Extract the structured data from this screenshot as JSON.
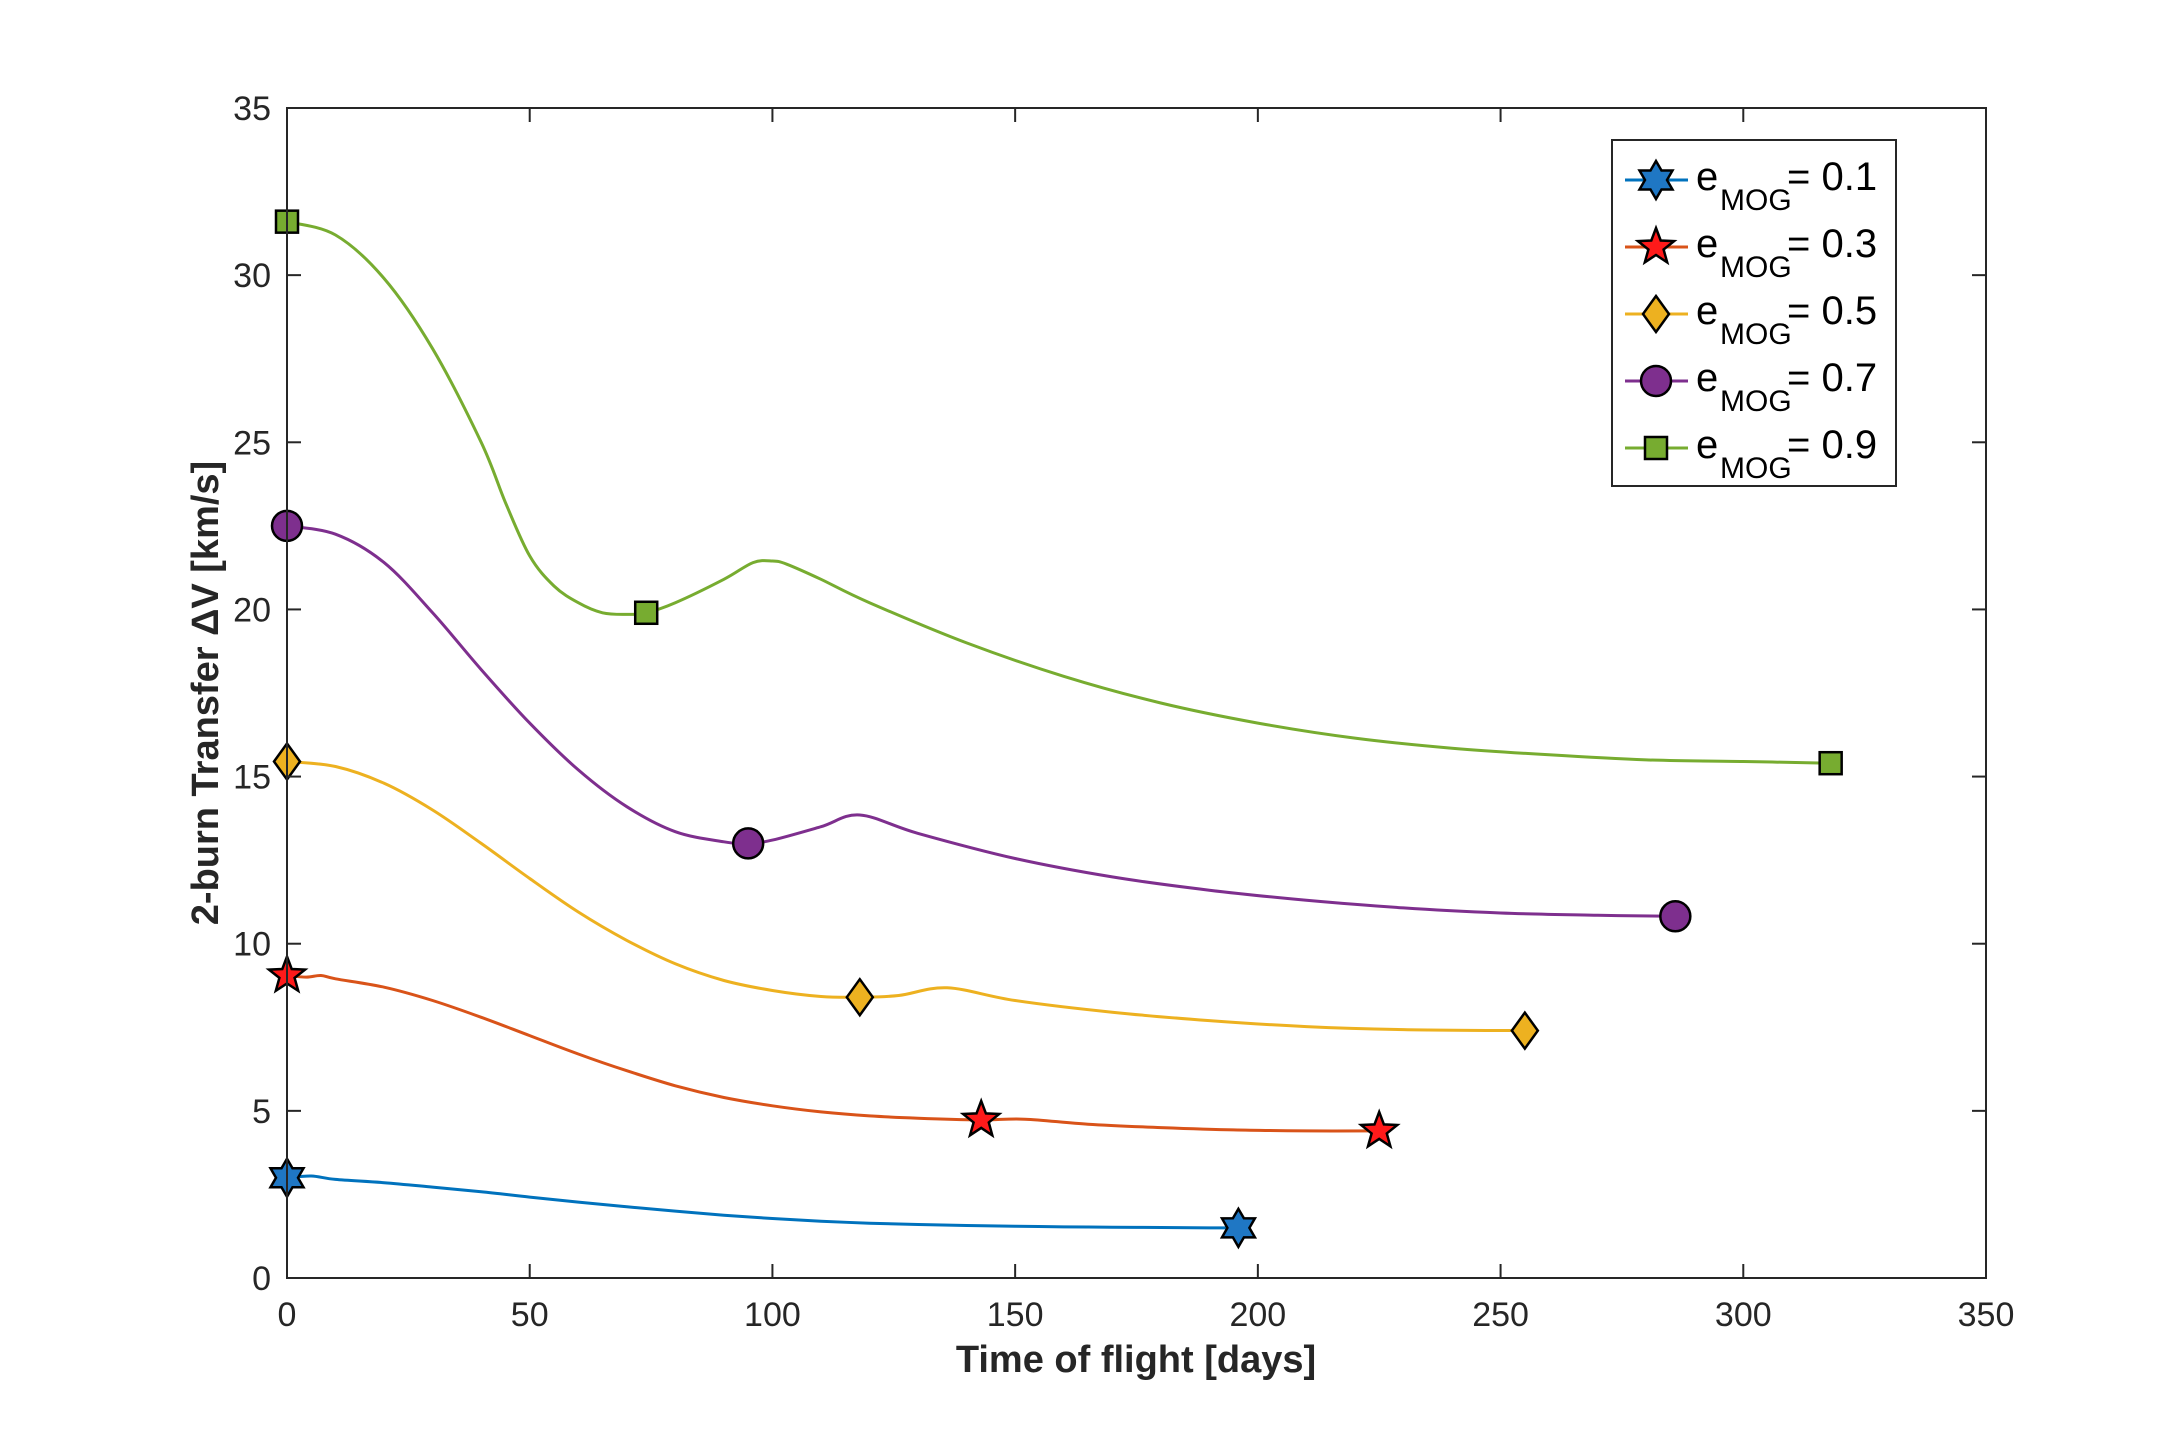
{
  "chart_data": {
    "type": "line",
    "title": "",
    "xlabel": "Time of flight [days]",
    "ylabel": "2-burn Transfer ΔV [km/s]",
    "xlim": [
      0,
      350
    ],
    "ylim": [
      0,
      35
    ],
    "xticks": [
      0,
      50,
      100,
      150,
      200,
      250,
      300,
      350
    ],
    "yticks": [
      0,
      5,
      10,
      15,
      20,
      25,
      30,
      35
    ],
    "xtick_labels": [
      "0",
      "50",
      "100",
      "150",
      "200",
      "250",
      "300",
      "350"
    ],
    "ytick_labels": [
      "0",
      "5",
      "10",
      "15",
      "20",
      "25",
      "30",
      "35"
    ],
    "grid": false,
    "legend_position": "top-right",
    "series": [
      {
        "name": "e_MOG = 0.1",
        "legend_base": "e",
        "legend_sub": "MOG",
        "legend_value": " = 0.1",
        "color": "#0072BD",
        "marker": "hexagram",
        "marker_color": "#1f77c4",
        "x": [
          0,
          5,
          10,
          20,
          30,
          40,
          50,
          60,
          70,
          80,
          90,
          100,
          110,
          120,
          130,
          140,
          150,
          160,
          170,
          180,
          190,
          196
        ],
        "y": [
          3.0,
          3.05,
          2.95,
          2.85,
          2.72,
          2.58,
          2.42,
          2.27,
          2.13,
          2.0,
          1.88,
          1.78,
          1.7,
          1.64,
          1.6,
          1.57,
          1.55,
          1.53,
          1.52,
          1.51,
          1.5,
          1.5
        ],
        "marker_x": [
          0,
          196
        ],
        "marker_y": [
          3.0,
          1.5
        ]
      },
      {
        "name": "e_MOG = 0.3",
        "legend_base": "e",
        "legend_sub": "MOG",
        "legend_value": " = 0.3",
        "color": "#D95319",
        "marker": "pentagram",
        "marker_color": "#ff1a1a",
        "x": [
          0,
          4,
          7,
          10,
          20,
          30,
          40,
          50,
          60,
          70,
          80,
          90,
          100,
          110,
          120,
          130,
          143,
          152,
          165,
          180,
          195,
          210,
          225
        ],
        "y": [
          9.05,
          9.0,
          9.05,
          8.95,
          8.7,
          8.3,
          7.8,
          7.25,
          6.7,
          6.2,
          5.75,
          5.4,
          5.15,
          4.97,
          4.85,
          4.78,
          4.73,
          4.75,
          4.6,
          4.5,
          4.43,
          4.4,
          4.4
        ],
        "marker_x": [
          0,
          143,
          225
        ],
        "marker_y": [
          9.05,
          4.73,
          4.4
        ]
      },
      {
        "name": "e_MOG = 0.5",
        "legend_base": "e",
        "legend_sub": "MOG",
        "legend_value": " = 0.5",
        "color": "#EDB120",
        "marker": "diamond",
        "marker_color": "#EDB120",
        "x": [
          0,
          10,
          20,
          30,
          40,
          50,
          60,
          70,
          80,
          90,
          100,
          110,
          118,
          126,
          136,
          150,
          170,
          190,
          210,
          230,
          255
        ],
        "y": [
          15.45,
          15.3,
          14.8,
          14.0,
          13.0,
          11.95,
          10.95,
          10.1,
          9.4,
          8.9,
          8.6,
          8.42,
          8.4,
          8.45,
          8.68,
          8.3,
          7.95,
          7.7,
          7.52,
          7.43,
          7.4
        ],
        "marker_x": [
          0,
          118,
          255
        ],
        "marker_y": [
          15.45,
          8.4,
          7.4
        ]
      },
      {
        "name": "e_MOG = 0.7",
        "legend_base": "e",
        "legend_sub": "MOG",
        "legend_value": " = 0.7",
        "color": "#7E2F8E",
        "marker": "circle",
        "marker_color": "#7E2F8E",
        "x": [
          0,
          10,
          20,
          30,
          40,
          50,
          60,
          70,
          80,
          90,
          95,
          100,
          110,
          118,
          130,
          150,
          170,
          190,
          210,
          230,
          250,
          270,
          286
        ],
        "y": [
          22.5,
          22.25,
          21.4,
          19.9,
          18.2,
          16.6,
          15.2,
          14.1,
          13.35,
          13.05,
          13.0,
          13.1,
          13.5,
          13.85,
          13.3,
          12.55,
          12.0,
          11.6,
          11.3,
          11.07,
          10.92,
          10.85,
          10.82
        ],
        "marker_x": [
          0,
          95,
          286
        ],
        "marker_y": [
          22.5,
          13.0,
          10.82
        ]
      },
      {
        "name": "e_MOG = 0.9",
        "legend_base": "e",
        "legend_sub": "MOG",
        "legend_value": " = 0.9",
        "color": "#77AC30",
        "marker": "square",
        "marker_color": "#77AC30",
        "x": [
          0,
          10,
          20,
          30,
          40,
          45,
          50,
          55,
          60,
          65,
          70,
          74,
          80,
          90,
          96,
          100,
          103,
          110,
          120,
          140,
          160,
          180,
          200,
          220,
          240,
          260,
          280,
          300,
          318
        ],
        "y": [
          31.6,
          31.2,
          29.9,
          27.8,
          25.0,
          23.2,
          21.6,
          20.7,
          20.2,
          19.9,
          19.85,
          19.9,
          20.2,
          20.9,
          21.4,
          21.45,
          21.35,
          20.9,
          20.2,
          19.0,
          18.0,
          17.2,
          16.6,
          16.15,
          15.85,
          15.65,
          15.5,
          15.45,
          15.4
        ],
        "marker_x": [
          0,
          74,
          318
        ],
        "marker_y": [
          31.6,
          19.9,
          15.4
        ]
      }
    ]
  }
}
